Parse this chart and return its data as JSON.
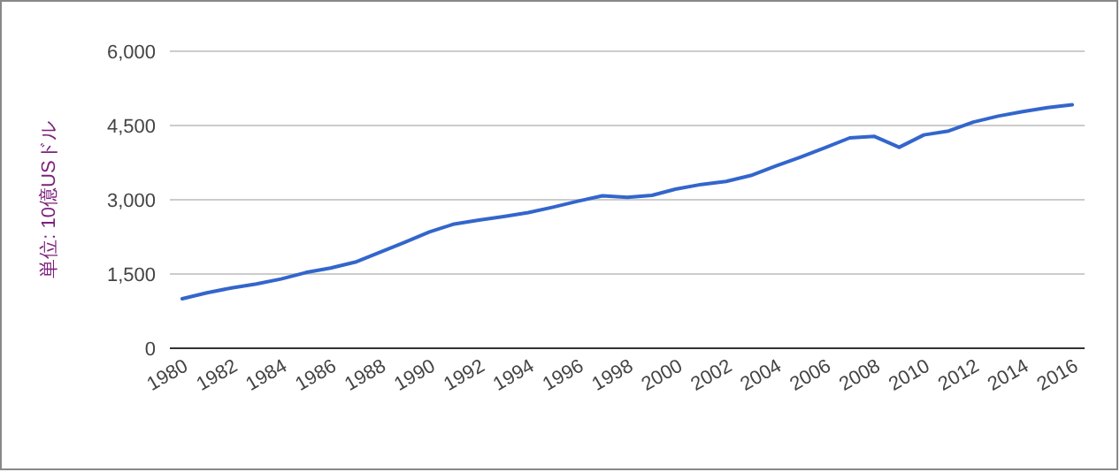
{
  "chart_data": {
    "type": "line",
    "ylabel": "単位: 10億USドル",
    "x": [
      1980,
      1981,
      1982,
      1983,
      1984,
      1985,
      1986,
      1987,
      1988,
      1989,
      1990,
      1991,
      1992,
      1993,
      1994,
      1995,
      1996,
      1997,
      1998,
      1999,
      2000,
      2001,
      2002,
      2003,
      2004,
      2005,
      2006,
      2007,
      2008,
      2009,
      2010,
      2011,
      2012,
      2013,
      2014,
      2015,
      2016
    ],
    "series": [
      {
        "color": "#3366cc",
        "values": [
          1000,
          1120,
          1220,
          1300,
          1400,
          1530,
          1620,
          1740,
          1940,
          2140,
          2350,
          2510,
          2590,
          2660,
          2740,
          2850,
          2970,
          3080,
          3050,
          3090,
          3220,
          3310,
          3370,
          3490,
          3680,
          3860,
          4050,
          4250,
          4280,
          4060,
          4310,
          4390,
          4570,
          4690,
          4780,
          4860,
          4920
        ]
      }
    ],
    "xlim": [
      1979.5,
      2016.5
    ],
    "xticks": [
      1980,
      1982,
      1984,
      1986,
      1988,
      1990,
      1992,
      1994,
      1996,
      1998,
      2000,
      2002,
      2004,
      2006,
      2008,
      2010,
      2012,
      2014,
      2016
    ],
    "ylim": [
      0,
      6000
    ],
    "yticks": [
      {
        "value": 0,
        "label": "0"
      },
      {
        "value": 1500,
        "label": "1,500"
      },
      {
        "value": 3000,
        "label": "3,000"
      },
      {
        "value": 4500,
        "label": "4,500"
      },
      {
        "value": 6000,
        "label": "6,000"
      }
    ],
    "grid": "y",
    "line_style": "solid",
    "marker": "none"
  }
}
